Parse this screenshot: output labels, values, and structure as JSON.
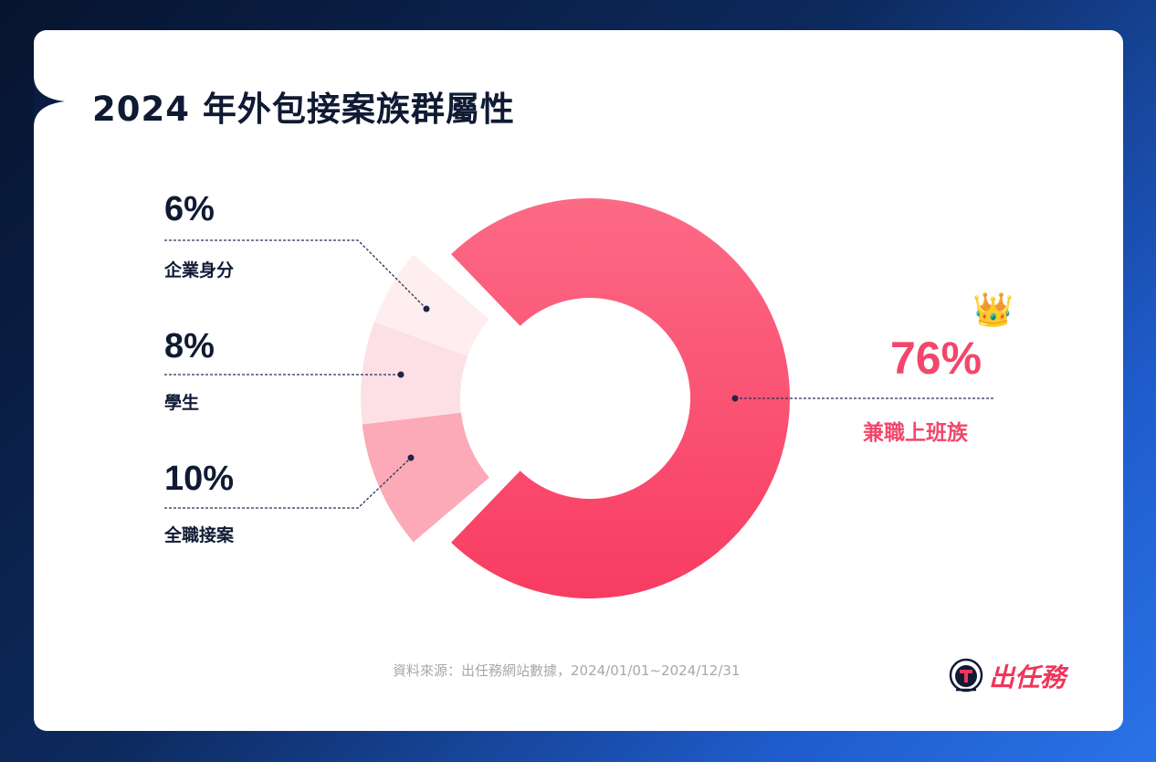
{
  "title": "2024 年外包接案族群屬性",
  "chart_data": {
    "type": "pie",
    "subtype": "donut",
    "title": "2024 年外包接案族群屬性",
    "categories": [
      "兼職上班族",
      "全職接案",
      "學生",
      "企業身分"
    ],
    "values": [
      76,
      10,
      8,
      6
    ],
    "unit": "%",
    "colors": [
      "#f7476c",
      "#fca9b8",
      "#fde0e5",
      "#feeef0"
    ],
    "legend_position": "callouts",
    "highlight": "兼職上班族"
  },
  "callouts": {
    "enterprise": {
      "pct": "6%",
      "label": "企業身分"
    },
    "student": {
      "pct": "8%",
      "label": "學生"
    },
    "fulltime": {
      "pct": "10%",
      "label": "全職接案"
    },
    "parttime": {
      "pct": "76%",
      "label": "兼職上班族",
      "badge": "👑"
    }
  },
  "footer": {
    "source": "資料來源：出任務網站數據，2024/01/01~2024/12/31",
    "logo_text": "出任務"
  }
}
